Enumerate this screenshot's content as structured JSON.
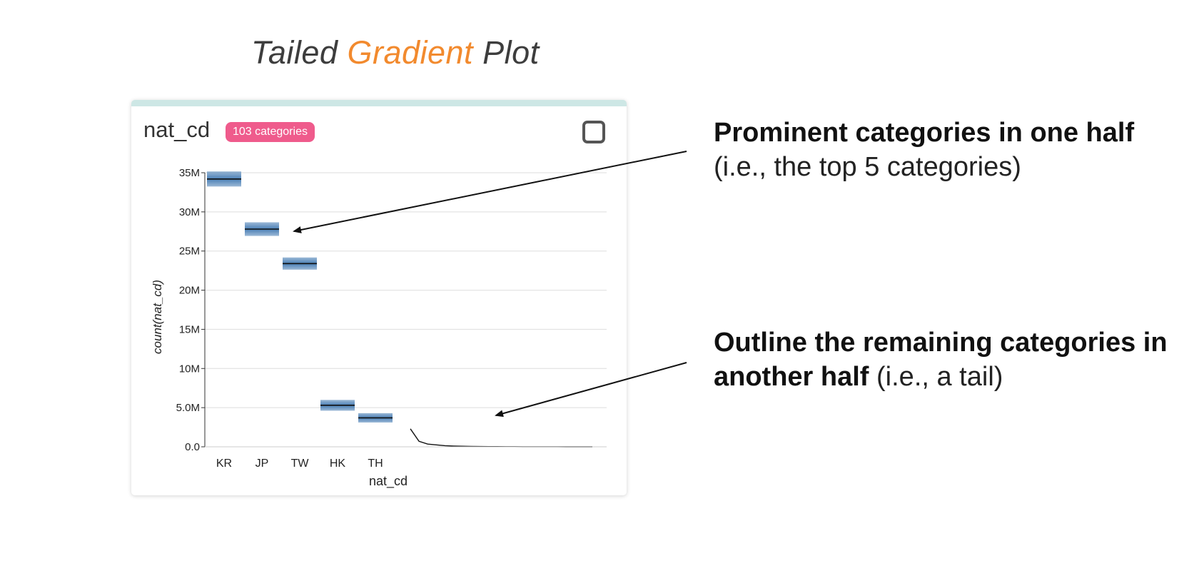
{
  "title": {
    "part1": "Tailed",
    "part2": "Gradient",
    "part3": "Plot"
  },
  "card": {
    "field_name": "nat_cd",
    "badge": "103 categories",
    "checkbox_checked": false
  },
  "colors": {
    "accent": "#f28a2e",
    "badge": "#ef5b8c",
    "strip": "#cde7e5",
    "box": "#4a7fb5"
  },
  "chart_data": {
    "type": "bar",
    "title": "",
    "xlabel": "nat_cd",
    "ylabel": "count(nat_cd)",
    "ylim": [
      0,
      35000000
    ],
    "y_ticks": [
      "0.0",
      "5.0M",
      "10M",
      "15M",
      "20M",
      "25M",
      "30M",
      "35M"
    ],
    "y_tick_values": [
      0,
      5000000,
      10000000,
      15000000,
      20000000,
      25000000,
      30000000,
      35000000
    ],
    "grid": true,
    "categories": [
      "KR",
      "JP",
      "TW",
      "HK",
      "TH"
    ],
    "values": [
      34200000,
      27800000,
      23400000,
      5300000,
      3700000
    ],
    "tail": {
      "values": [
        2300000,
        700000,
        350000,
        250000,
        150000,
        100000,
        70000,
        50000,
        40000,
        30000,
        25000,
        20000,
        15000,
        12000,
        10000,
        8000,
        6000,
        5000,
        4000,
        3000,
        2000,
        1000
      ]
    }
  },
  "annotations": {
    "top": {
      "bold": "Prominent categories in one half",
      "light": "(i.e., the top 5 categories)"
    },
    "bottom": {
      "bold_line1": "Outline the remaining categories in",
      "bold_line2": "another half",
      "light": " (i.e., a tail)"
    }
  }
}
